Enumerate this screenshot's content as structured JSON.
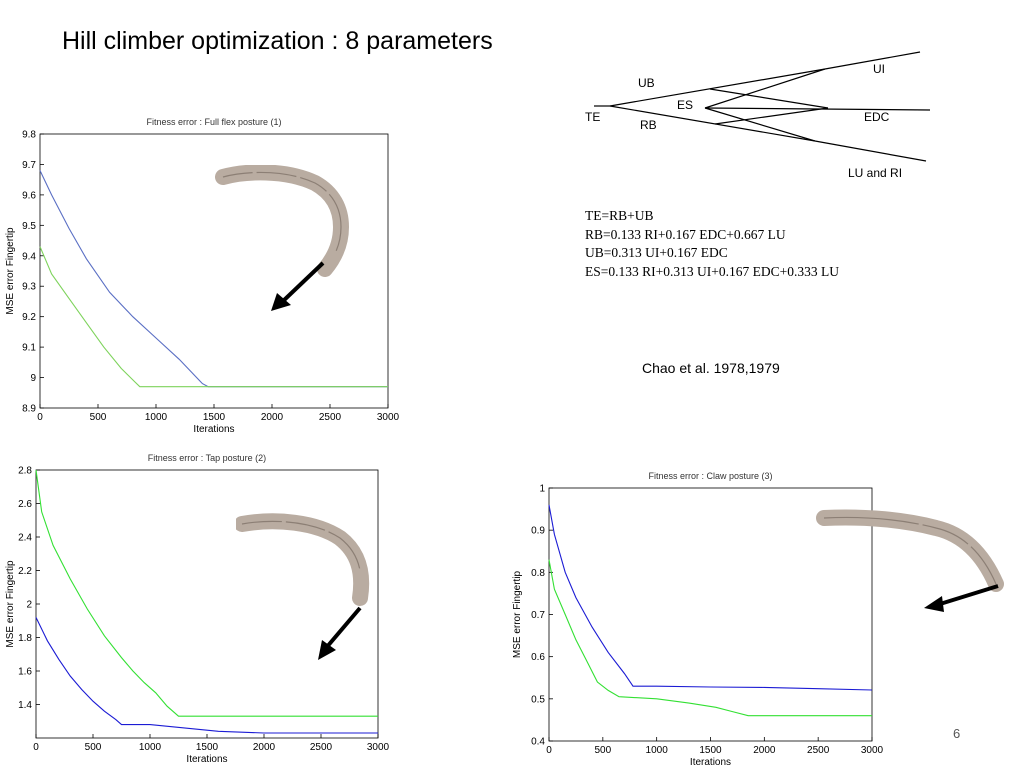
{
  "slide": {
    "title": "Hill climber optimization : 8 parameters",
    "citation": "Chao et al. 1978,1979",
    "page_number": "6"
  },
  "tendon_diagram": {
    "labels": [
      "TE",
      "UB",
      "RB",
      "ES",
      "UI",
      "EDC",
      "LU and RI"
    ]
  },
  "equations": [
    "TE=RB+UB",
    "RB=0.133 RI+0.167 EDC+0.667 LU",
    "UB=0.313 UI+0.167 EDC",
    "ES=0.133 RI+0.313 UI+0.167 EDC+0.333 LU"
  ],
  "colors": {
    "blue": "#5a6fc4",
    "green": "#7ed35c",
    "pure_blue": "#1b1bd4",
    "pure_green": "#33e033",
    "finger": "#b9aca1"
  },
  "icons": [
    "finger-bone-icon",
    "force-arrow-icon"
  ],
  "chart_data": [
    {
      "type": "line",
      "title": "Fitness error : Full flex posture (1)",
      "xlabel": "Iterations",
      "ylabel": "MSE error Fingertip",
      "xlim": [
        0,
        3000
      ],
      "ylim": [
        8.9,
        9.8
      ],
      "xticks": [
        0,
        500,
        1000,
        1500,
        2000,
        2500,
        3000
      ],
      "yticks": [
        8.9,
        9.0,
        9.1,
        9.2,
        9.3,
        9.4,
        9.5,
        9.6,
        9.7,
        9.8
      ],
      "ytick_labels": [
        "8.9",
        "9",
        "9.1",
        "9.2",
        "9.3",
        "9.4",
        "9.5",
        "9.6",
        "9.7",
        "9.8"
      ],
      "grid": false,
      "series": [
        {
          "color": "#5a6fc4",
          "x": [
            0,
            100,
            250,
            400,
            600,
            800,
            1000,
            1200,
            1400,
            1450,
            3000
          ],
          "y": [
            9.68,
            9.6,
            9.49,
            9.39,
            9.28,
            9.2,
            9.13,
            9.06,
            8.98,
            8.97,
            8.97
          ]
        },
        {
          "color": "#7ed35c",
          "x": [
            0,
            100,
            250,
            400,
            550,
            700,
            820,
            860,
            3000
          ],
          "y": [
            9.43,
            9.34,
            9.26,
            9.18,
            9.1,
            9.03,
            8.985,
            8.97,
            8.97
          ]
        }
      ]
    },
    {
      "type": "line",
      "title": "Fitness error : Tap posture (2)",
      "xlabel": "Iterations",
      "ylabel": "MSE error Fingertip",
      "xlim": [
        0,
        3000
      ],
      "ylim": [
        1.2,
        2.8
      ],
      "xticks": [
        0,
        500,
        1000,
        1500,
        2000,
        2500,
        3000
      ],
      "yticks": [
        1.4,
        1.6,
        1.8,
        2.0,
        2.2,
        2.4,
        2.6,
        2.8
      ],
      "ytick_labels": [
        "1.4",
        "1.6",
        "1.8",
        "2",
        "2.2",
        "2.4",
        "2.6",
        "2.8"
      ],
      "grid": false,
      "series": [
        {
          "color": "#1b1bd4",
          "x": [
            0,
            100,
            200,
            300,
            400,
            500,
            600,
            700,
            750,
            1000,
            1300,
            1600,
            2000,
            3000
          ],
          "y": [
            1.92,
            1.78,
            1.67,
            1.57,
            1.49,
            1.42,
            1.36,
            1.31,
            1.28,
            1.28,
            1.26,
            1.24,
            1.23,
            1.23
          ]
        },
        {
          "color": "#33e033",
          "x": [
            0,
            50,
            150,
            300,
            450,
            600,
            750,
            850,
            950,
            1050,
            1150,
            1250,
            1400,
            3000
          ],
          "y": [
            2.8,
            2.55,
            2.35,
            2.15,
            1.97,
            1.81,
            1.68,
            1.6,
            1.53,
            1.47,
            1.39,
            1.33,
            1.33,
            1.33
          ]
        }
      ]
    },
    {
      "type": "line",
      "title": "Fitness error : Claw posture (3)",
      "xlabel": "Iterations",
      "ylabel": "MSE error Fingertip",
      "xlim": [
        0,
        3000
      ],
      "ylim": [
        0.4,
        1.0
      ],
      "xticks": [
        0,
        500,
        1000,
        1500,
        2000,
        2500,
        3000
      ],
      "yticks": [
        0.4,
        0.5,
        0.6,
        0.7,
        0.8,
        0.9,
        1.0
      ],
      "ytick_labels": [
        "0.4",
        "0.5",
        "0.6",
        "0.7",
        "0.8",
        "0.9",
        "1"
      ],
      "grid": false,
      "series": [
        {
          "color": "#1b1bd4",
          "x": [
            0,
            50,
            150,
            250,
            400,
            550,
            700,
            780,
            1000,
            1500,
            2000,
            2500,
            3000
          ],
          "y": [
            0.96,
            0.89,
            0.8,
            0.74,
            0.67,
            0.61,
            0.56,
            0.53,
            0.53,
            0.528,
            0.527,
            0.524,
            0.521
          ]
        },
        {
          "color": "#33e033",
          "x": [
            0,
            50,
            150,
            250,
            350,
            450,
            550,
            650,
            1000,
            1300,
            1550,
            1700,
            1850,
            2200,
            3000
          ],
          "y": [
            0.83,
            0.76,
            0.7,
            0.64,
            0.59,
            0.54,
            0.52,
            0.505,
            0.5,
            0.49,
            0.48,
            0.47,
            0.46,
            0.46,
            0.46
          ]
        }
      ]
    }
  ]
}
